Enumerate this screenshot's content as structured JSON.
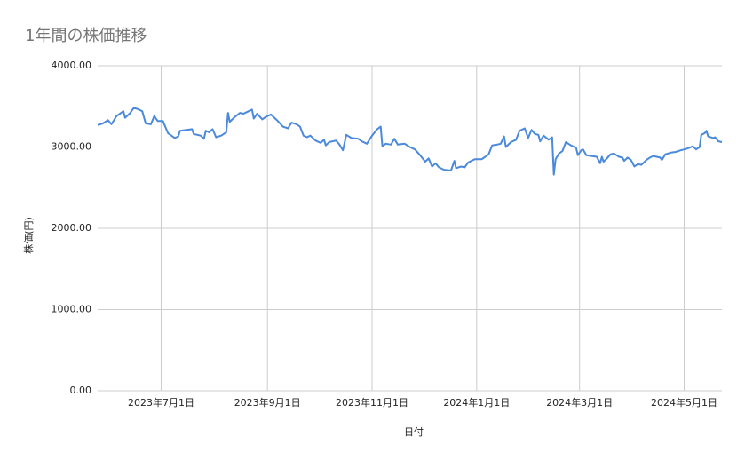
{
  "chart_data": {
    "type": "line",
    "title": "1年間の株価推移",
    "x_label": "日付",
    "y_label": "株価(円)",
    "x": [
      "2023-05-25",
      "2023-05-28",
      "2023-05-31",
      "2023-06-02",
      "2023-06-05",
      "2023-06-09",
      "2023-06-10",
      "2023-06-13",
      "2023-06-15",
      "2023-06-17",
      "2023-06-20",
      "2023-06-22",
      "2023-06-25",
      "2023-06-27",
      "2023-06-29",
      "2023-07-02",
      "2023-07-05",
      "2023-07-09",
      "2023-07-11",
      "2023-07-12",
      "2023-07-16",
      "2023-07-19",
      "2023-07-20",
      "2023-07-24",
      "2023-07-26",
      "2023-07-27",
      "2023-07-29",
      "2023-07-31",
      "2023-08-02",
      "2023-08-05",
      "2023-08-08",
      "2023-08-09",
      "2023-08-10",
      "2023-08-13",
      "2023-08-16",
      "2023-08-18",
      "2023-08-21",
      "2023-08-23",
      "2023-08-24",
      "2023-08-26",
      "2023-08-29",
      "2023-08-31",
      "2023-09-03",
      "2023-09-07",
      "2023-09-10",
      "2023-09-13",
      "2023-09-15",
      "2023-09-18",
      "2023-09-20",
      "2023-09-22",
      "2023-09-24",
      "2023-09-26",
      "2023-09-29",
      "2023-10-02",
      "2023-10-04",
      "2023-10-05",
      "2023-10-07",
      "2023-10-11",
      "2023-10-13",
      "2023-10-15",
      "2023-10-17",
      "2023-10-20",
      "2023-10-24",
      "2023-10-26",
      "2023-10-29",
      "2023-11-01",
      "2023-11-04",
      "2023-11-06",
      "2023-11-07",
      "2023-11-09",
      "2023-11-12",
      "2023-11-14",
      "2023-11-16",
      "2023-11-20",
      "2023-11-23",
      "2023-11-26",
      "2023-11-29",
      "2023-12-02",
      "2023-12-04",
      "2023-12-06",
      "2023-12-08",
      "2023-12-10",
      "2023-12-13",
      "2023-12-17",
      "2023-12-19",
      "2023-12-20",
      "2023-12-23",
      "2023-12-25",
      "2023-12-27",
      "2023-12-31",
      "2024-01-04",
      "2024-01-06",
      "2024-01-08",
      "2024-01-10",
      "2024-01-13",
      "2024-01-15",
      "2024-01-17",
      "2024-01-18",
      "2024-01-21",
      "2024-01-24",
      "2024-01-26",
      "2024-01-29",
      "2024-01-31",
      "2024-02-02",
      "2024-02-04",
      "2024-02-06",
      "2024-02-07",
      "2024-02-09",
      "2024-02-12",
      "2024-02-14",
      "2024-02-15",
      "2024-02-16",
      "2024-02-18",
      "2024-02-20",
      "2024-02-22",
      "2024-02-25",
      "2024-02-28",
      "2024-02-29",
      "2024-03-02",
      "2024-03-03",
      "2024-03-05",
      "2024-03-08",
      "2024-03-11",
      "2024-03-13",
      "2024-03-14",
      "2024-03-15",
      "2024-03-17",
      "2024-03-19",
      "2024-03-21",
      "2024-03-24",
      "2024-03-26",
      "2024-03-27",
      "2024-03-29",
      "2024-03-31",
      "2024-04-02",
      "2024-04-04",
      "2024-04-06",
      "2024-04-09",
      "2024-04-11",
      "2024-04-13",
      "2024-04-15",
      "2024-04-17",
      "2024-04-18",
      "2024-04-20",
      "2024-04-23",
      "2024-04-26",
      "2024-04-29",
      "2024-05-01",
      "2024-05-04",
      "2024-05-06",
      "2024-05-08",
      "2024-05-10",
      "2024-05-11",
      "2024-05-13",
      "2024-05-14",
      "2024-05-15",
      "2024-05-18",
      "2024-05-19",
      "2024-05-21",
      "2024-05-23"
    ],
    "series": [
      {
        "name": "株価(円)",
        "color": "#4a89dc",
        "values": [
          3270,
          3290,
          3330,
          3280,
          3380,
          3440,
          3360,
          3420,
          3480,
          3470,
          3440,
          3290,
          3280,
          3380,
          3320,
          3320,
          3170,
          3110,
          3130,
          3200,
          3210,
          3220,
          3160,
          3140,
          3100,
          3200,
          3180,
          3220,
          3120,
          3140,
          3180,
          3420,
          3310,
          3370,
          3420,
          3410,
          3440,
          3460,
          3350,
          3410,
          3340,
          3370,
          3400,
          3320,
          3250,
          3230,
          3300,
          3280,
          3250,
          3140,
          3120,
          3140,
          3080,
          3050,
          3090,
          3020,
          3060,
          3080,
          3030,
          2960,
          3150,
          3110,
          3100,
          3070,
          3040,
          3140,
          3220,
          3250,
          3010,
          3040,
          3030,
          3100,
          3030,
          3040,
          3000,
          2970,
          2900,
          2820,
          2860,
          2760,
          2800,
          2750,
          2720,
          2710,
          2830,
          2740,
          2760,
          2750,
          2810,
          2850,
          2850,
          2880,
          2910,
          3020,
          3030,
          3040,
          3130,
          3000,
          3060,
          3090,
          3200,
          3230,
          3110,
          3210,
          3160,
          3150,
          3070,
          3140,
          3090,
          3120,
          2660,
          2850,
          2920,
          2950,
          3060,
          3020,
          2990,
          2900,
          2960,
          2970,
          2900,
          2890,
          2880,
          2800,
          2880,
          2820,
          2860,
          2910,
          2920,
          2880,
          2870,
          2830,
          2870,
          2840,
          2760,
          2790,
          2780,
          2840,
          2870,
          2890,
          2880,
          2870,
          2840,
          2910,
          2930,
          2940,
          2960,
          2970,
          2990,
          3010,
          2970,
          3000,
          3150,
          3170,
          3200,
          3130,
          3110,
          3120,
          3070,
          3060
        ]
      }
    ],
    "xlim": [
      "2023-05-25",
      "2024-05-23"
    ],
    "xticks": [
      {
        "value": "2023-07-01",
        "label": "2023年7月1日"
      },
      {
        "value": "2023-09-01",
        "label": "2023年9月1日"
      },
      {
        "value": "2023-11-01",
        "label": "2023年11月1日"
      },
      {
        "value": "2024-01-01",
        "label": "2024年1月1日"
      },
      {
        "value": "2024-03-01",
        "label": "2024年3月1日"
      },
      {
        "value": "2024-05-01",
        "label": "2024年5月1日"
      }
    ],
    "ylim": [
      0,
      4000
    ],
    "yticks": [
      {
        "value": 0,
        "label": "0.00"
      },
      {
        "value": 1000,
        "label": "1000.00"
      },
      {
        "value": 2000,
        "label": "2000.00"
      },
      {
        "value": 3000,
        "label": "3000.00"
      },
      {
        "value": 4000,
        "label": "4000.00"
      }
    ],
    "grid": true
  }
}
